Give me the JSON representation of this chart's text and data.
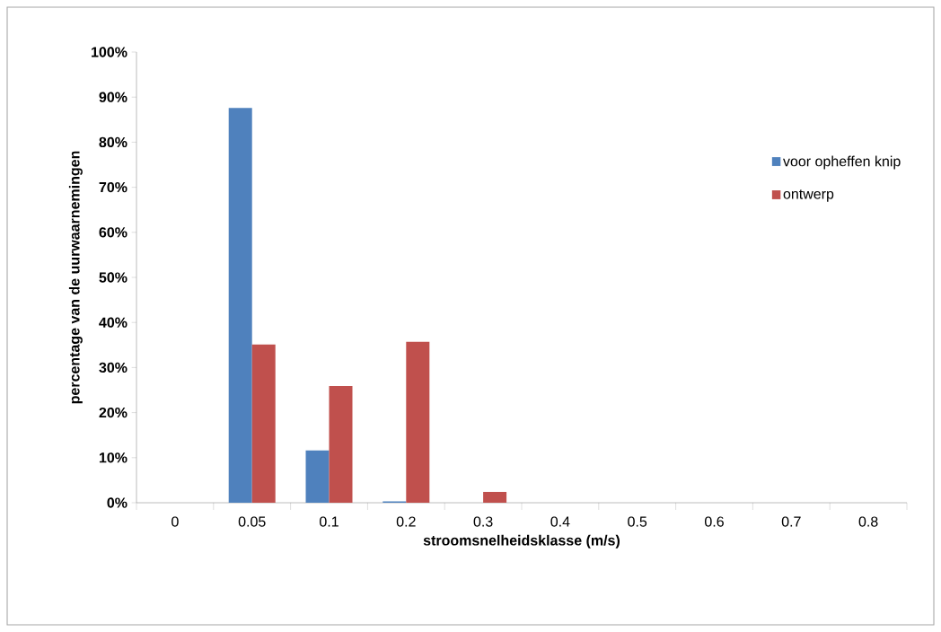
{
  "chart_data": {
    "type": "bar",
    "xlabel": "stroomsnelheidsklasse (m/s)",
    "ylabel": "percentage van de uurwaarnemingen",
    "categories": [
      "0",
      "0.05",
      "0.1",
      "0.2",
      "0.3",
      "0.4",
      "0.5",
      "0.6",
      "0.7",
      "0.8"
    ],
    "series": [
      {
        "name": "voor opheffen knip",
        "color": "#4f81bd",
        "values": [
          0,
          87.6,
          11.6,
          0.3,
          0,
          0,
          0,
          0,
          0,
          0
        ]
      },
      {
        "name": "ontwerp",
        "color": "#c0504d",
        "values": [
          0,
          35.1,
          25.9,
          35.7,
          2.4,
          0,
          0,
          0,
          0,
          0
        ]
      }
    ],
    "ylim": [
      0,
      100
    ],
    "yticks": [
      {
        "value": 0,
        "label": "0%"
      },
      {
        "value": 10,
        "label": "10%"
      },
      {
        "value": 20,
        "label": "20%"
      },
      {
        "value": 30,
        "label": "30%"
      },
      {
        "value": 40,
        "label": "40%"
      },
      {
        "value": 50,
        "label": "50%"
      },
      {
        "value": 60,
        "label": "60%"
      },
      {
        "value": 70,
        "label": "70%"
      },
      {
        "value": 80,
        "label": "80%"
      },
      {
        "value": 90,
        "label": "90%"
      },
      {
        "value": 100,
        "label": "100%"
      }
    ],
    "grid": false,
    "legend": "right"
  }
}
